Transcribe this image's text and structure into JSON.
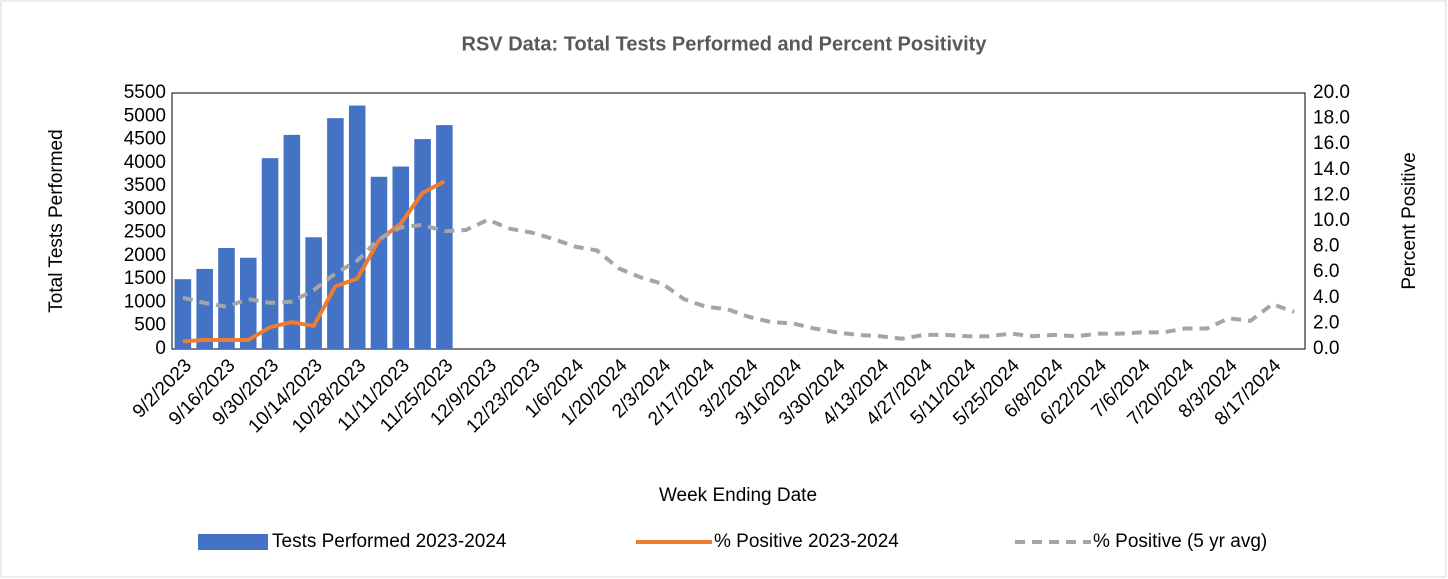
{
  "chart_data": {
    "type": "bar_line",
    "title": "RSV Data: Total Tests Performed and Percent Positivity",
    "x_label": "Week Ending Date",
    "y_label": "Total Tests Performed",
    "y2_label": "Percent Positive",
    "categories": [
      "9/2/2023",
      null,
      "9/16/2023",
      null,
      "9/30/2023",
      null,
      "10/14/2023",
      null,
      "10/28/2023",
      null,
      "11/11/2023",
      null,
      "11/25/2023",
      null,
      "12/9/2023",
      null,
      "12/23/2023",
      null,
      "1/6/2024",
      null,
      "1/20/2024",
      null,
      "2/3/2024",
      null,
      "2/17/2024",
      null,
      "3/2/2024",
      null,
      "3/16/2024",
      null,
      "3/30/2024",
      null,
      "4/13/2024",
      null,
      "4/27/2024",
      null,
      "5/11/2024",
      null,
      "5/25/2024",
      null,
      "6/8/2024",
      null,
      "6/22/2024",
      null,
      "7/6/2024",
      null,
      "7/20/2024",
      null,
      "8/3/2024",
      null,
      "8/17/2024",
      null
    ],
    "series": [
      {
        "name": "Tests Performed 2023-2024",
        "type": "bar",
        "color": "#4472c4",
        "axis": "y",
        "values": [
          1500,
          1720,
          2170,
          1960,
          4100,
          4600,
          2400,
          4960,
          5230,
          3700,
          3920,
          4510,
          4810,
          null,
          null,
          null,
          null,
          null,
          null,
          null,
          null,
          null,
          null,
          null,
          null,
          null,
          null,
          null,
          null,
          null,
          null,
          null,
          null,
          null,
          null,
          null,
          null,
          null,
          null,
          null,
          null,
          null,
          null,
          null,
          null,
          null,
          null,
          null,
          null,
          null,
          null,
          null
        ]
      },
      {
        "name": "% Positive 2023-2024",
        "type": "line",
        "color": "#ed7d31",
        "axis": "y2",
        "dashed": false,
        "values": [
          0.6,
          0.7,
          0.7,
          0.7,
          1.7,
          2.1,
          1.8,
          4.9,
          5.5,
          8.5,
          9.8,
          12.2,
          13.1,
          null,
          null,
          null,
          null,
          null,
          null,
          null,
          null,
          null,
          null,
          null,
          null,
          null,
          null,
          null,
          null,
          null,
          null,
          null,
          null,
          null,
          null,
          null,
          null,
          null,
          null,
          null,
          null,
          null,
          null,
          null,
          null,
          null,
          null,
          null,
          null,
          null,
          null,
          null
        ]
      },
      {
        "name": "% Positive (5 yr avg)",
        "type": "line",
        "color": "#a5a5a5",
        "axis": "y2",
        "dashed": true,
        "values": [
          4.0,
          3.6,
          3.3,
          3.9,
          3.6,
          3.7,
          4.6,
          5.9,
          6.9,
          8.6,
          9.5,
          9.7,
          9.2,
          9.3,
          10.1,
          9.4,
          9.1,
          8.6,
          8.0,
          7.7,
          6.3,
          5.6,
          5.1,
          3.9,
          3.3,
          3.1,
          2.5,
          2.1,
          2.0,
          1.6,
          1.3,
          1.1,
          1.0,
          0.8,
          1.1,
          1.1,
          1.0,
          1.0,
          1.2,
          1.0,
          1.1,
          1.0,
          1.2,
          1.2,
          1.3,
          1.3,
          1.6,
          1.6,
          2.4,
          2.2,
          3.5,
          2.9
        ]
      }
    ],
    "ylim": [
      0,
      5500
    ],
    "yticks": [
      0,
      500,
      1000,
      1500,
      2000,
      2500,
      3000,
      3500,
      4000,
      4500,
      5000,
      5500
    ],
    "y2lim": [
      0,
      20
    ],
    "y2ticks": [
      {
        "value": 0,
        "label": "0.0"
      },
      {
        "value": 2,
        "label": "2.0"
      },
      {
        "value": 4,
        "label": "4.0"
      },
      {
        "value": 6,
        "label": "6.0"
      },
      {
        "value": 8,
        "label": "8.0"
      },
      {
        "value": 10,
        "label": "10.0"
      },
      {
        "value": 12,
        "label": "12.0"
      },
      {
        "value": 14,
        "label": "14.0"
      },
      {
        "value": 16,
        "label": "16.0"
      },
      {
        "value": 18,
        "label": "18.0"
      },
      {
        "value": 20,
        "label": "20.0"
      }
    ],
    "legend": "bottom"
  }
}
